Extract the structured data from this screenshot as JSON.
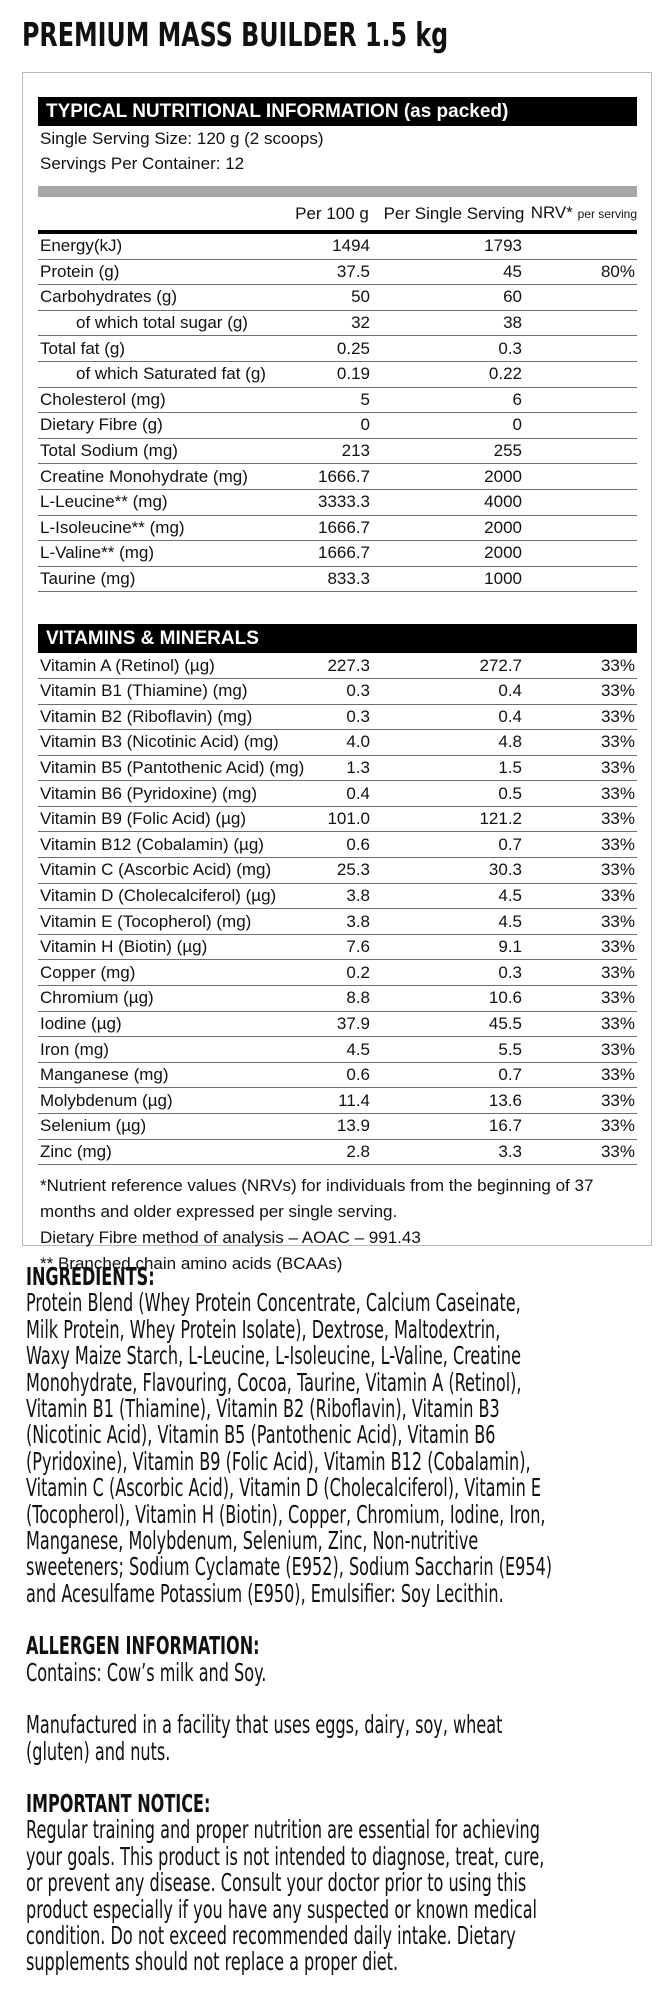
{
  "product_title": "PREMIUM MASS BUILDER 1.5 kg",
  "nutrition": {
    "header": "TYPICAL NUTRITIONAL INFORMATION (as packed)",
    "serving_size": "Single Serving Size: 120 g (2 scoops)",
    "servings_per_container": "Servings Per Container: 12",
    "columns": {
      "per100": "Per 100 g",
      "perServing": "Per Single Serving",
      "nrv": "NRV*",
      "nrv_note": "per serving"
    },
    "rows": [
      {
        "name": "Energy(kJ)",
        "per100": "1494",
        "perServing": "1793",
        "nrv": ""
      },
      {
        "name": "Protein (g)",
        "per100": "37.5",
        "perServing": "45",
        "nrv": "80%"
      },
      {
        "name": "Carbohydrates (g)",
        "per100": "50",
        "perServing": "60",
        "nrv": ""
      },
      {
        "name": "of which total sugar (g)",
        "per100": "32",
        "perServing": "38",
        "nrv": "",
        "sub": true
      },
      {
        "name": "Total fat (g)",
        "per100": "0.25",
        "perServing": "0.3",
        "nrv": ""
      },
      {
        "name": "of which Saturated fat (g)",
        "per100": "0.19",
        "perServing": "0.22",
        "nrv": "",
        "sub": true
      },
      {
        "name": "Cholesterol (mg)",
        "per100": "5",
        "perServing": "6",
        "nrv": ""
      },
      {
        "name": "Dietary Fibre (g)",
        "per100": "0",
        "perServing": "0",
        "nrv": ""
      },
      {
        "name": "Total Sodium (mg)",
        "per100": "213",
        "perServing": "255",
        "nrv": ""
      },
      {
        "name": "Creatine Monohydrate (mg)",
        "per100": "1666.7",
        "perServing": "2000",
        "nrv": ""
      },
      {
        "name": "L-Leucine** (mg)",
        "per100": "3333.3",
        "perServing": "4000",
        "nrv": ""
      },
      {
        "name": "L-Isoleucine** (mg)",
        "per100": "1666.7",
        "perServing": "2000",
        "nrv": ""
      },
      {
        "name": "L-Valine** (mg)",
        "per100": "1666.7",
        "perServing": "2000",
        "nrv": ""
      },
      {
        "name": "Taurine (mg)",
        "per100": "833.3",
        "perServing": "1000",
        "nrv": ""
      }
    ]
  },
  "vitamins": {
    "header": "VITAMINS & MINERALS",
    "rows": [
      {
        "name": "Vitamin A (Retinol) (µg)",
        "per100": "227.3",
        "perServing": "272.7",
        "nrv": "33%"
      },
      {
        "name": "Vitamin B1 (Thiamine) (mg)",
        "per100": "0.3",
        "perServing": "0.4",
        "nrv": "33%"
      },
      {
        "name": "Vitamin B2 (Riboflavin) (mg)",
        "per100": "0.3",
        "perServing": "0.4",
        "nrv": "33%"
      },
      {
        "name": "Vitamin B3 (Nicotinic Acid) (mg)",
        "per100": "4.0",
        "perServing": "4.8",
        "nrv": "33%"
      },
      {
        "name": "Vitamin B5 (Pantothenic Acid) (mg)",
        "per100": "1.3",
        "perServing": "1.5",
        "nrv": "33%"
      },
      {
        "name": "Vitamin B6 (Pyridoxine) (mg)",
        "per100": "0.4",
        "perServing": "0.5",
        "nrv": "33%"
      },
      {
        "name": "Vitamin B9 (Folic Acid) (µg)",
        "per100": "101.0",
        "perServing": "121.2",
        "nrv": "33%"
      },
      {
        "name": "Vitamin B12 (Cobalamin) (µg)",
        "per100": "0.6",
        "perServing": "0.7",
        "nrv": "33%"
      },
      {
        "name": "Vitamin C (Ascorbic Acid) (mg)",
        "per100": "25.3",
        "perServing": "30.3",
        "nrv": "33%"
      },
      {
        "name": "Vitamin D (Cholecalciferol) (µg)",
        "per100": "3.8",
        "perServing": "4.5",
        "nrv": "33%"
      },
      {
        "name": "Vitamin E (Tocopherol) (mg)",
        "per100": "3.8",
        "perServing": "4.5",
        "nrv": "33%"
      },
      {
        "name": "Vitamin H (Biotin) (µg)",
        "per100": "7.6",
        "perServing": "9.1",
        "nrv": "33%"
      },
      {
        "name": "Copper  (mg)",
        "per100": "0.2",
        "perServing": "0.3",
        "nrv": "33%"
      },
      {
        "name": "Chromium (µg)",
        "per100": "8.8",
        "perServing": "10.6",
        "nrv": "33%"
      },
      {
        "name": "Iodine (µg)",
        "per100": "37.9",
        "perServing": "45.5",
        "nrv": "33%"
      },
      {
        "name": "Iron (mg)",
        "per100": "4.5",
        "perServing": "5.5",
        "nrv": "33%"
      },
      {
        "name": "Manganese (mg)",
        "per100": "0.6",
        "perServing": "0.7",
        "nrv": "33%"
      },
      {
        "name": "Molybdenum (µg)",
        "per100": "11.4",
        "perServing": "13.6",
        "nrv": "33%"
      },
      {
        "name": "Selenium (µg)",
        "per100": "13.9",
        "perServing": "16.7",
        "nrv": "33%"
      },
      {
        "name": "Zinc (mg)",
        "per100": "2.8",
        "perServing": "3.3",
        "nrv": "33%"
      }
    ]
  },
  "footnotes": {
    "nrv_note": "*Nutrient reference values (NRVs) for individuals from the beginning of 37 months and older expressed per single serving.",
    "fibre_method": "Dietary Fibre method of analysis – AOAC – 991.43",
    "bcaa": "** Branched chain amino acids (BCAAs)"
  },
  "ingredients": {
    "heading": "INGREDIENTS:",
    "lines": [
      "Protein Blend (Whey Protein Concentrate, Calcium Caseinate,",
      "Milk Protein, Whey Protein Isolate), Dextrose, Maltodextrin,",
      "Waxy Maize Starch, L-Leucine, L-Isoleucine, L-Valine, Creatine",
      "Monohydrate, Flavouring, Cocoa, Taurine, Vitamin A (Retinol),",
      "Vitamin B1 (Thiamine), Vitamin B2 (Riboflavin), Vitamin B3",
      "(Nicotinic Acid), Vitamin B5 (Pantothenic Acid), Vitamin B6",
      "(Pyridoxine), Vitamin B9 (Folic Acid), Vitamin B12 (Cobalamin),",
      "Vitamin C (Ascorbic Acid), Vitamin D (Cholecalciferol), Vitamin E",
      "(Tocopherol), Vitamin H (Biotin), Copper, Chromium, Iodine, Iron,",
      "Manganese, Molybdenum, Selenium, Zinc, Non-nutritive",
      "sweeteners; Sodium Cyclamate (E952), Sodium Saccharin (E954)",
      "and Acesulfame Potassium (E950), Emulsifier: Soy Lecithin."
    ]
  },
  "allergen": {
    "heading": "ALLERGEN INFORMATION:",
    "contains": "Contains: Cow’s milk and Soy.",
    "facility_lines": [
      "Manufactured in a facility that uses eggs, dairy, soy, wheat",
      "(gluten) and nuts."
    ]
  },
  "notice": {
    "heading": "IMPORTANT NOTICE:",
    "lines": [
      "Regular training and proper nutrition are essential for achieving",
      "your goals. This product is not intended to diagnose, treat, cure,",
      "or prevent any disease. Consult your doctor prior to using this",
      "product especially if you have any suspected or known medical",
      "condition. Do not exceed recommended daily intake. Dietary",
      "supplements should not replace a proper diet."
    ]
  }
}
